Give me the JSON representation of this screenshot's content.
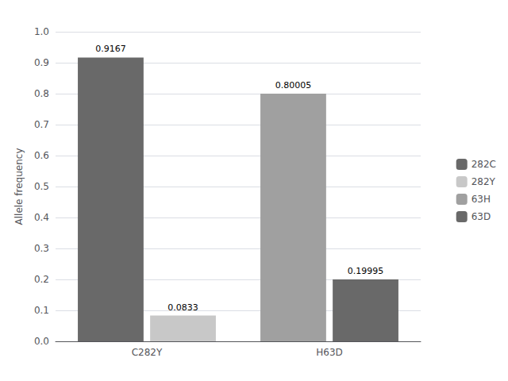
{
  "chart_data": {
    "type": "bar",
    "categories": [
      "C282Y",
      "H63D"
    ],
    "series": [
      {
        "name": "282C",
        "color": "#696969",
        "values": [
          0.9167,
          null
        ]
      },
      {
        "name": "282Y",
        "color": "#c8c8c8",
        "values": [
          0.0833,
          null
        ]
      },
      {
        "name": "63H",
        "color": "#a0a0a0",
        "values": [
          null,
          0.80005
        ]
      },
      {
        "name": "63D",
        "color": "#696969",
        "values": [
          null,
          0.19995
        ]
      }
    ],
    "ylabel": "Allele frequency",
    "ylim": [
      0,
      1
    ],
    "yticks": [
      {
        "value": 0,
        "label": "0.0"
      },
      0.1,
      0.2,
      0.3,
      0.4,
      0.5,
      0.6,
      0.7,
      0.8,
      0.9,
      {
        "value": 1,
        "label": "1.0"
      }
    ],
    "grid": true,
    "legend": "right",
    "data_labels": true
  }
}
